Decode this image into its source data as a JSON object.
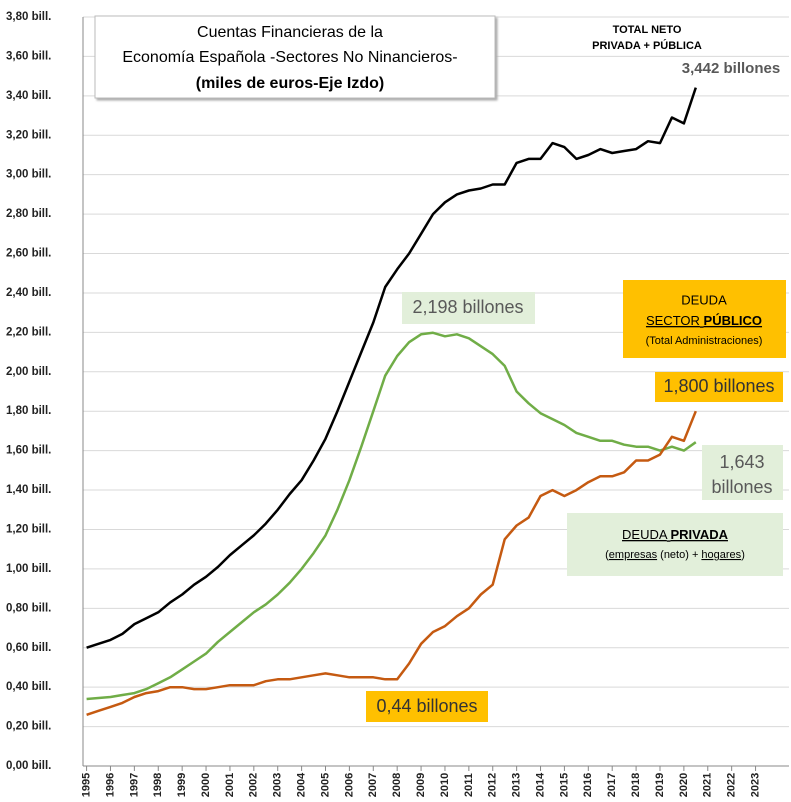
{
  "chart_data": {
    "type": "line",
    "title": [
      "Cuentas Financieras de la",
      "Economía Española -Sectores No Ninancieros-",
      "(miles de euros-Eje Izdo)"
    ],
    "annotations": {
      "total": [
        "TOTAL NETO",
        "PRIVADA + PÚBLICA"
      ],
      "total_value": "3,442 billones",
      "private_peak": "2,198 billones",
      "public_box": [
        "DEUDA",
        "SECTOR",
        "PÚBLICO",
        "(Total Administraciones)"
      ],
      "public_value": "1,800 billones",
      "private_value": [
        "1,643",
        "billones"
      ],
      "private_box": [
        "DEUDA",
        "PRIVADA",
        "(",
        "empresas",
        " (neto) + ",
        "hogares",
        ")"
      ],
      "public_low": "0,44 billones"
    },
    "x": [
      1995,
      1995.5,
      1996,
      1996.5,
      1997,
      1997.5,
      1998,
      1998.5,
      1999,
      1999.5,
      2000,
      2000.5,
      2001,
      2001.5,
      2002,
      2002.5,
      2003,
      2003.5,
      2004,
      2004.5,
      2005,
      2005.5,
      2006,
      2006.5,
      2007,
      2007.5,
      2008,
      2008.5,
      2009,
      2009.5,
      2010,
      2010.5,
      2011,
      2011.5,
      2012,
      2012.5,
      2013,
      2013.5,
      2014,
      2014.5,
      2015,
      2015.5,
      2016,
      2016.5,
      2017,
      2017.5,
      2018,
      2018.5,
      2019,
      2019.5,
      2020,
      2020.5
    ],
    "series": [
      {
        "color": "#000000",
        "values": [
          0.6,
          0.62,
          0.64,
          0.67,
          0.72,
          0.75,
          0.78,
          0.83,
          0.87,
          0.92,
          0.96,
          1.01,
          1.07,
          1.12,
          1.17,
          1.23,
          1.3,
          1.38,
          1.45,
          1.55,
          1.66,
          1.8,
          1.95,
          2.1,
          2.25,
          2.43,
          2.52,
          2.6,
          2.7,
          2.8,
          2.86,
          2.9,
          2.92,
          2.93,
          2.95,
          2.95,
          3.06,
          3.08,
          3.08,
          3.16,
          3.14,
          3.08,
          3.1,
          3.13,
          3.11,
          3.12,
          3.13,
          3.17,
          3.16,
          3.29,
          3.26,
          3.442
        ]
      },
      {
        "color": "#70ad47",
        "values": [
          0.34,
          0.345,
          0.35,
          0.36,
          0.37,
          0.39,
          0.42,
          0.45,
          0.49,
          0.53,
          0.57,
          0.63,
          0.68,
          0.73,
          0.78,
          0.82,
          0.87,
          0.93,
          1.0,
          1.08,
          1.17,
          1.3,
          1.45,
          1.62,
          1.8,
          1.98,
          2.08,
          2.15,
          2.19,
          2.198,
          2.18,
          2.19,
          2.17,
          2.13,
          2.09,
          2.03,
          1.9,
          1.84,
          1.79,
          1.76,
          1.73,
          1.69,
          1.67,
          1.65,
          1.65,
          1.63,
          1.62,
          1.62,
          1.6,
          1.62,
          1.6,
          1.643
        ]
      },
      {
        "color": "#c55a11",
        "values": [
          0.26,
          0.28,
          0.3,
          0.32,
          0.35,
          0.37,
          0.38,
          0.4,
          0.4,
          0.39,
          0.39,
          0.4,
          0.41,
          0.41,
          0.41,
          0.43,
          0.44,
          0.44,
          0.45,
          0.46,
          0.47,
          0.46,
          0.45,
          0.45,
          0.45,
          0.44,
          0.44,
          0.52,
          0.62,
          0.68,
          0.71,
          0.76,
          0.8,
          0.87,
          0.92,
          1.15,
          1.22,
          1.26,
          1.37,
          1.4,
          1.37,
          1.4,
          1.44,
          1.47,
          1.47,
          1.49,
          1.55,
          1.55,
          1.58,
          1.67,
          1.65,
          1.8
        ]
      }
    ],
    "xlim": [
      1994.85,
      2024.4
    ],
    "xticks": [
      1995,
      1996,
      1997,
      1998,
      1999,
      2000,
      2001,
      2002,
      2003,
      2004,
      2005,
      2006,
      2007,
      2008,
      2009,
      2010,
      2011,
      2012,
      2013,
      2014,
      2015,
      2016,
      2017,
      2018,
      2019,
      2020,
      2021,
      2022,
      2023
    ],
    "ylim": [
      0,
      3.8
    ],
    "yticks": [
      {
        "value": 0,
        "label": "0,00 bill."
      },
      {
        "value": 0.2,
        "label": "0,20 bill."
      },
      {
        "value": 0.4,
        "label": "0,40 bill."
      },
      {
        "value": 0.6,
        "label": "0,60 bill."
      },
      {
        "value": 0.8,
        "label": "0,80 bill."
      },
      {
        "value": 1.0,
        "label": "1,00 bill."
      },
      {
        "value": 1.2,
        "label": "1,20 bill."
      },
      {
        "value": 1.4,
        "label": "1,40 bill."
      },
      {
        "value": 1.6,
        "label": "1,60 bill."
      },
      {
        "value": 1.8,
        "label": "1,80 bill."
      },
      {
        "value": 2.0,
        "label": "2,00 bill."
      },
      {
        "value": 2.2,
        "label": "2,20 bill."
      },
      {
        "value": 2.4,
        "label": "2,40 bill."
      },
      {
        "value": 2.6,
        "label": "2,60 bill."
      },
      {
        "value": 2.8,
        "label": "2,80 bill."
      },
      {
        "value": 3.0,
        "label": "3,00 bill."
      },
      {
        "value": 3.2,
        "label": "3,20 bill."
      },
      {
        "value": 3.4,
        "label": "3,40 bill."
      },
      {
        "value": 3.6,
        "label": "3,60 bill."
      },
      {
        "value": 3.8,
        "label": "3,80 bill."
      }
    ],
    "grid": true
  }
}
